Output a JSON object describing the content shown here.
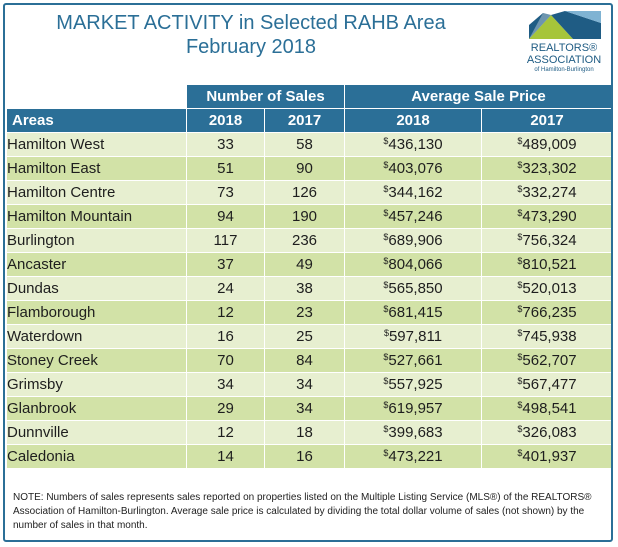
{
  "header": {
    "title_line1": "MARKET ACTIVITY in Selected RAHB Area",
    "title_line2": "February 2018"
  },
  "logo": {
    "line1": "REALTORS®",
    "line2": "ASSOCIATION",
    "line3": "of Hamilton-Burlington",
    "icon": "house-roof-logo-icon",
    "colors": {
      "primary": "#1f5c84",
      "accent": "#a6c53a",
      "light": "#7fb3d3"
    }
  },
  "table": {
    "group_sales": "Number of Sales",
    "group_price": "Average Sale Price",
    "col_areas": "Areas",
    "col_2018": "2018",
    "col_2017": "2017",
    "currency_symbol": "$",
    "rows": [
      {
        "area": "Hamilton West",
        "sales_2018": "33",
        "sales_2017": "58",
        "price_2018": "436,130",
        "price_2017": "489,009"
      },
      {
        "area": "Hamilton East",
        "sales_2018": "51",
        "sales_2017": "90",
        "price_2018": "403,076",
        "price_2017": "323,302"
      },
      {
        "area": "Hamilton Centre",
        "sales_2018": "73",
        "sales_2017": "126",
        "price_2018": "344,162",
        "price_2017": "332,274"
      },
      {
        "area": "Hamilton Mountain",
        "sales_2018": "94",
        "sales_2017": "190",
        "price_2018": "457,246",
        "price_2017": "473,290"
      },
      {
        "area": "Burlington",
        "sales_2018": "117",
        "sales_2017": "236",
        "price_2018": "689,906",
        "price_2017": "756,324"
      },
      {
        "area": "Ancaster",
        "sales_2018": "37",
        "sales_2017": "49",
        "price_2018": "804,066",
        "price_2017": "810,521"
      },
      {
        "area": "Dundas",
        "sales_2018": "24",
        "sales_2017": "38",
        "price_2018": "565,850",
        "price_2017": "520,013"
      },
      {
        "area": "Flamborough",
        "sales_2018": "12",
        "sales_2017": "23",
        "price_2018": "681,415",
        "price_2017": "766,235"
      },
      {
        "area": "Waterdown",
        "sales_2018": "16",
        "sales_2017": "25",
        "price_2018": "597,811",
        "price_2017": "745,938"
      },
      {
        "area": "Stoney Creek",
        "sales_2018": "70",
        "sales_2017": "84",
        "price_2018": "527,661",
        "price_2017": "562,707"
      },
      {
        "area": "Grimsby",
        "sales_2018": "34",
        "sales_2017": "34",
        "price_2018": "557,925",
        "price_2017": "567,477"
      },
      {
        "area": "Glanbrook",
        "sales_2018": "29",
        "sales_2017": "34",
        "price_2018": "619,957",
        "price_2017": "498,541"
      },
      {
        "area": "Dunnville",
        "sales_2018": "12",
        "sales_2017": "18",
        "price_2018": "399,683",
        "price_2017": "326,083"
      },
      {
        "area": "Caledonia",
        "sales_2018": "14",
        "sales_2017": "16",
        "price_2018": "473,221",
        "price_2017": "401,937"
      }
    ]
  },
  "note": {
    "text": "NOTE:  Numbers of sales represents sales reported on properties listed on the Multiple Listing Service (MLS®) of the REALTORS® Association of Hamilton-Burlington. Average sale price is calculated by dividing the total dollar volume of sales (not shown) by the number of sales in that month."
  },
  "colors": {
    "header_blue": "#2b6f97",
    "row_light": "#e7efd0",
    "row_dark": "#d2e2a7"
  }
}
